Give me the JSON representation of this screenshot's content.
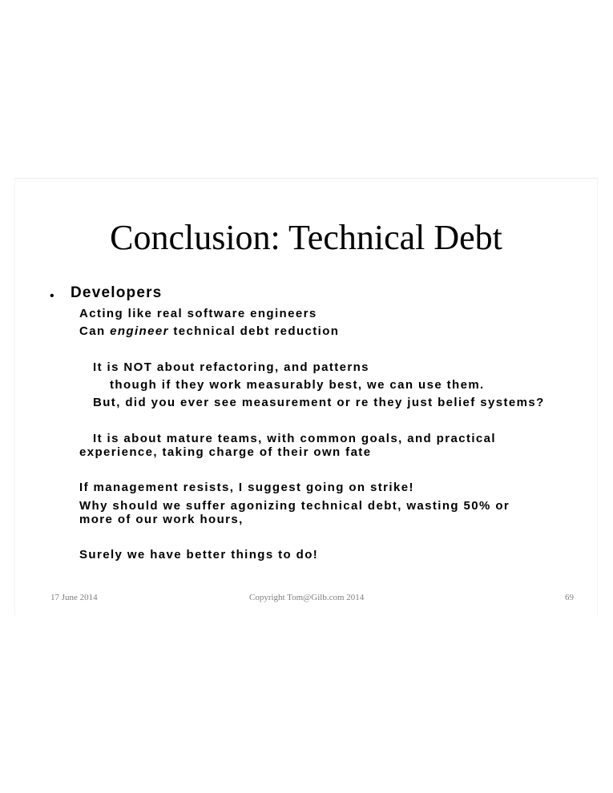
{
  "slide": {
    "title": "Conclusion: Technical Debt",
    "bullet_glyph": "•",
    "heading": "Developers",
    "line_acting": "Acting like real software engineers",
    "line_can_prefix": "Can ",
    "line_can_italic": "engineer",
    "line_can_suffix": " technical debt reduction",
    "line_not_refactoring": "It is NOT about refactoring, and patterns",
    "line_though": "though if they work measurably best, we can use them.",
    "line_but": "But, did you ever see measurement or re they just belief systems?",
    "line_mature_1": "It is about mature teams, with common goals, and practical",
    "line_mature_2": "experience, taking charge of their own fate",
    "line_strike": "If management resists, I suggest going on strike!",
    "line_why_1": "Why should we suffer agonizing technical debt, wasting 50% or",
    "line_why_2": "more of our work hours,",
    "line_surely": "Surely we have better things to do!"
  },
  "footer": {
    "date": "17 June 2014",
    "copyright": "Copyright Tom@Gilb.com 2014",
    "page_number": "69"
  }
}
